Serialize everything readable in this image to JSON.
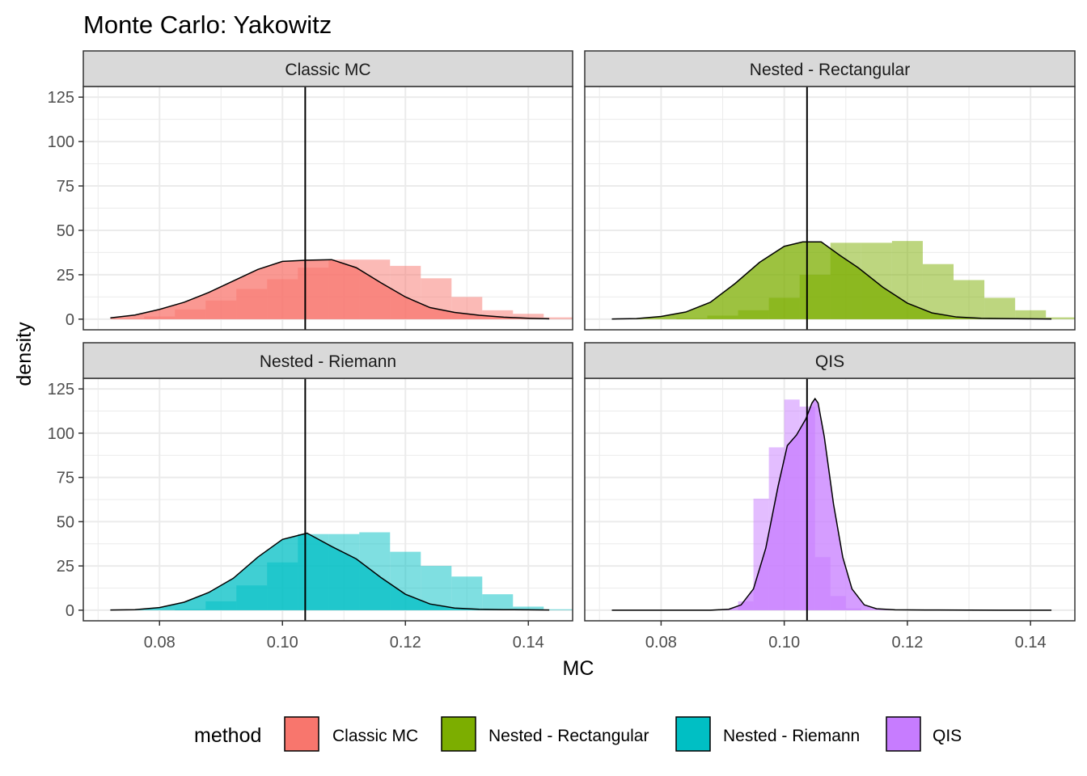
{
  "chart_data": {
    "type": "histogram-density-facet",
    "title": "Monte Carlo: Yakowitz",
    "xlabel": "MC",
    "ylabel": "density",
    "xlim": [
      0.0676,
      0.1472
    ],
    "ylim": [
      -6,
      131
    ],
    "x_ticks": [
      0.08,
      0.1,
      0.12,
      0.14
    ],
    "x_tick_labels": [
      "0.08",
      "0.10",
      "0.12",
      "0.14"
    ],
    "y_ticks": [
      0,
      25,
      50,
      75,
      100,
      125
    ],
    "y_tick_labels": [
      "0",
      "25",
      "50",
      "75",
      "100",
      "125"
    ],
    "reference_line_x": 0.1037,
    "grid": true,
    "legend": {
      "title": "method",
      "position": "bottom",
      "entries": [
        "Classic MC",
        "Nested - Rectangular",
        "Nested - Riemann",
        "QIS"
      ]
    },
    "bin_edges_start": 0.0725,
    "bin_width": 0.005,
    "panels": [
      {
        "name": "Classic MC",
        "color": "#F8766D",
        "hist": [
          0.3,
          1.5,
          5.5,
          10.5,
          17,
          22.5,
          29,
          33.5,
          33.5,
          30,
          23,
          12.5,
          5,
          3,
          1,
          0,
          0,
          0,
          0,
          0
        ],
        "density": {
          "x": [
            0.072,
            0.076,
            0.08,
            0.084,
            0.088,
            0.092,
            0.096,
            0.1,
            0.104,
            0.108,
            0.112,
            0.116,
            0.12,
            0.124,
            0.128,
            0.132,
            0.136,
            0.14,
            0.1434
          ],
          "y": [
            0.7,
            2.3,
            5.5,
            9.5,
            15,
            21.5,
            28,
            32.5,
            33.2,
            33.5,
            29,
            20.5,
            12.5,
            6.5,
            3.8,
            2.2,
            1.1,
            0.5,
            0.2
          ]
        }
      },
      {
        "name": "Nested - Rectangular",
        "color": "#7CAE00",
        "hist": [
          0,
          0,
          0.5,
          2,
          5,
          12,
          25,
          43,
          43,
          44,
          31,
          22,
          12,
          5,
          1,
          0,
          0,
          0,
          0,
          0
        ],
        "density": {
          "x": [
            0.072,
            0.076,
            0.08,
            0.084,
            0.088,
            0.092,
            0.096,
            0.1,
            0.103,
            0.106,
            0.109,
            0.112,
            0.116,
            0.12,
            0.124,
            0.128,
            0.132,
            0.136,
            0.14,
            0.1434
          ],
          "y": [
            0.1,
            0.3,
            1.5,
            4,
            9.5,
            20,
            32,
            41,
            43.5,
            43.5,
            36,
            29,
            18,
            9,
            3.5,
            1.2,
            0.5,
            0.3,
            0.2,
            0.1
          ]
        }
      },
      {
        "name": "Nested - Riemann",
        "color": "#00BFC4",
        "hist": [
          0,
          0,
          0.5,
          5,
          14,
          27,
          43,
          43,
          44,
          33,
          25,
          19,
          9,
          2,
          0.5,
          0,
          0,
          0,
          0,
          0
        ],
        "density": {
          "x": [
            0.072,
            0.076,
            0.08,
            0.084,
            0.088,
            0.092,
            0.096,
            0.1,
            0.104,
            0.108,
            0.112,
            0.116,
            0.12,
            0.124,
            0.128,
            0.132,
            0.136,
            0.14,
            0.1434
          ],
          "y": [
            0.1,
            0.3,
            1.5,
            4.5,
            10,
            18,
            30,
            40,
            43.5,
            36,
            29,
            18.5,
            9,
            3.5,
            1.2,
            0.5,
            0.3,
            0.2,
            0.1
          ]
        }
      },
      {
        "name": "QIS",
        "color": "#C77CFF",
        "hist": [
          0,
          0,
          0,
          0,
          0,
          0,
          0,
          0,
          0,
          0,
          0,
          0,
          0,
          0,
          0,
          0,
          0,
          0,
          0,
          0
        ],
        "hist_qis": {
          "start": 0.0925,
          "width": 0.0025,
          "values": [
            5,
            63,
            92,
            119,
            115,
            30,
            8,
            1
          ]
        },
        "density": {
          "x": [
            0.072,
            0.08,
            0.088,
            0.091,
            0.093,
            0.095,
            0.097,
            0.099,
            0.1005,
            0.102,
            0.1035,
            0.1045,
            0.105,
            0.1055,
            0.1065,
            0.108,
            0.1095,
            0.111,
            0.113,
            0.115,
            0.118,
            0.125,
            0.135,
            0.1434
          ],
          "y": [
            0,
            0,
            0,
            0.5,
            3,
            12,
            35,
            70,
            93,
            99,
            108,
            117,
            119.5,
            117,
            98,
            60,
            30,
            12,
            3,
            0.8,
            0.2,
            0.1,
            0,
            0
          ]
        }
      }
    ]
  }
}
